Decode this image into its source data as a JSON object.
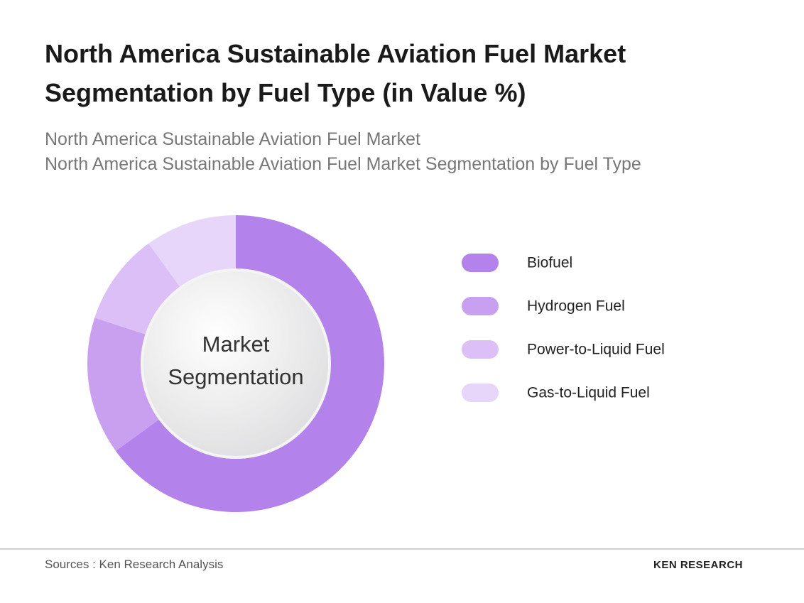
{
  "chart_data": {
    "type": "donut",
    "title": "North America Sustainable Aviation Fuel Market Segmentation by Fuel Type (in Value %)",
    "subtitles": [
      "North America Sustainable Aviation Fuel Market",
      "North America Sustainable Aviation Fuel Market Segmentation by Fuel Type"
    ],
    "center_label": "Market Segmentation",
    "categories": [
      "Biofuel",
      "Hydrogen Fuel",
      "Power-to-Liquid Fuel",
      "Gas-to-Liquid Fuel"
    ],
    "values": [
      65,
      15,
      10,
      10
    ],
    "colors": [
      "#b383eb",
      "#c9a0f0",
      "#dbbff6",
      "#e7d5fa"
    ],
    "legend": "right"
  },
  "source": "Sources : Ken Research Analysis",
  "logo": "KEN RESEARCH"
}
